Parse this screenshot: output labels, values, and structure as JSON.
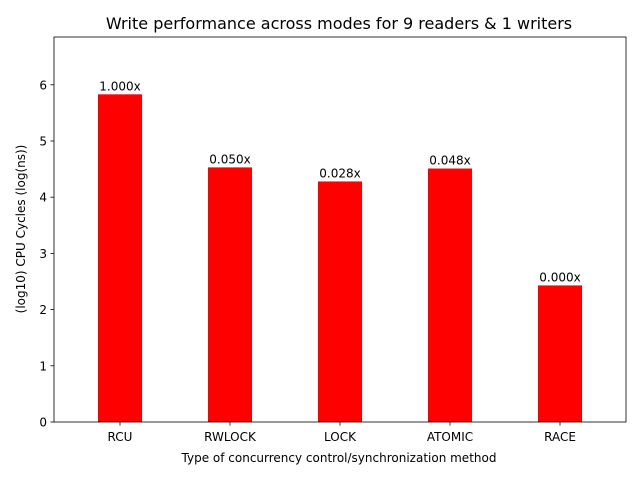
{
  "chart_data": {
    "type": "bar",
    "title": "Write performance across modes for 9 readers & 1 writers",
    "xlabel": "Type of concurrency control/synchronization method",
    "ylabel": "(log10) CPU Cycles (log(ns))",
    "categories": [
      "RCU",
      "RWLOCK",
      "LOCK",
      "ATOMIC",
      "RACE"
    ],
    "values": [
      5.83,
      4.53,
      4.28,
      4.51,
      2.43
    ],
    "data_labels": [
      "1.000x",
      "0.050x",
      "0.028x",
      "0.048x",
      "0.000x"
    ],
    "ylim": [
      0,
      6.85
    ],
    "yticks": [
      0,
      1,
      2,
      3,
      4,
      5,
      6
    ],
    "grid": false,
    "bar_color": "#ff0000"
  }
}
